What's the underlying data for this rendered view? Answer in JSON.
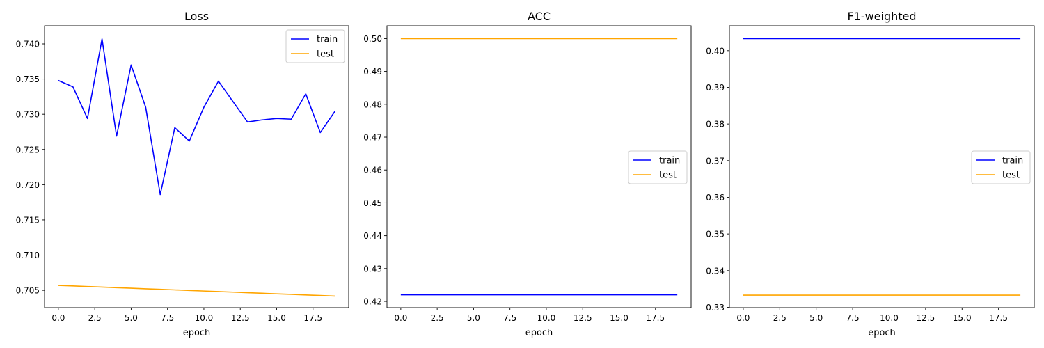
{
  "chart_data": [
    {
      "type": "line",
      "title": "Loss",
      "xlabel": "epoch",
      "ylabel": "",
      "x": [
        0,
        1,
        2,
        3,
        4,
        5,
        6,
        7,
        8,
        9,
        10,
        11,
        12,
        13,
        14,
        15,
        16,
        17,
        18,
        19
      ],
      "xlim": [
        -0.95,
        19.95
      ],
      "ylim": [
        0.70254,
        0.74257
      ],
      "xticks": [
        0.0,
        2.5,
        5.0,
        7.5,
        10.0,
        12.5,
        15.0,
        17.5
      ],
      "xtick_labels": [
        "0.0",
        "2.5",
        "5.0",
        "7.5",
        "10.0",
        "12.5",
        "15.0",
        "17.5"
      ],
      "yticks": [
        0.705,
        0.71,
        0.715,
        0.72,
        0.725,
        0.73,
        0.735,
        0.74
      ],
      "ytick_labels": [
        "0.705",
        "0.710",
        "0.715",
        "0.720",
        "0.725",
        "0.730",
        "0.735",
        "0.740"
      ],
      "grid": false,
      "legend": "upper right",
      "series": [
        {
          "name": "train",
          "color": "#0000ff",
          "values": [
            0.7348,
            0.7339,
            0.7294,
            0.7407,
            0.7269,
            0.737,
            0.731,
            0.7186,
            0.7281,
            0.7262,
            0.731,
            0.7347,
            0.7318,
            0.7289,
            0.7292,
            0.7294,
            0.7293,
            0.7329,
            0.7274,
            0.7304
          ]
        },
        {
          "name": "test",
          "color": "#ffa500",
          "values": [
            0.7057,
            0.70562,
            0.70554,
            0.70546,
            0.70538,
            0.7053,
            0.70522,
            0.70514,
            0.70506,
            0.70498,
            0.7049,
            0.70482,
            0.70474,
            0.70466,
            0.70458,
            0.7045,
            0.70442,
            0.70434,
            0.70426,
            0.70418
          ]
        }
      ]
    },
    {
      "type": "line",
      "title": "ACC",
      "xlabel": "epoch",
      "ylabel": "",
      "x": [
        0,
        1,
        2,
        3,
        4,
        5,
        6,
        7,
        8,
        9,
        10,
        11,
        12,
        13,
        14,
        15,
        16,
        17,
        18,
        19
      ],
      "xlim": [
        -0.95,
        19.95
      ],
      "ylim": [
        0.4181,
        0.5039
      ],
      "xticks": [
        0.0,
        2.5,
        5.0,
        7.5,
        10.0,
        12.5,
        15.0,
        17.5
      ],
      "xtick_labels": [
        "0.0",
        "2.5",
        "5.0",
        "7.5",
        "10.0",
        "12.5",
        "15.0",
        "17.5"
      ],
      "yticks": [
        0.42,
        0.43,
        0.44,
        0.45,
        0.46,
        0.47,
        0.48,
        0.49,
        0.5
      ],
      "ytick_labels": [
        "0.42",
        "0.43",
        "0.44",
        "0.45",
        "0.46",
        "0.47",
        "0.48",
        "0.49",
        "0.50"
      ],
      "grid": false,
      "legend": "center right",
      "series": [
        {
          "name": "train",
          "color": "#0000ff",
          "values": [
            0.422,
            0.422,
            0.422,
            0.422,
            0.422,
            0.422,
            0.422,
            0.422,
            0.422,
            0.422,
            0.422,
            0.422,
            0.422,
            0.422,
            0.422,
            0.422,
            0.422,
            0.422,
            0.422,
            0.422
          ]
        },
        {
          "name": "test",
          "color": "#ffa500",
          "values": [
            0.5,
            0.5,
            0.5,
            0.5,
            0.5,
            0.5,
            0.5,
            0.5,
            0.5,
            0.5,
            0.5,
            0.5,
            0.5,
            0.5,
            0.5,
            0.5,
            0.5,
            0.5,
            0.5,
            0.5
          ]
        }
      ]
    },
    {
      "type": "line",
      "title": "F1-weighted",
      "xlabel": "epoch",
      "ylabel": "",
      "x": [
        0,
        1,
        2,
        3,
        4,
        5,
        6,
        7,
        8,
        9,
        10,
        11,
        12,
        13,
        14,
        15,
        16,
        17,
        18,
        19
      ],
      "xlim": [
        -0.95,
        19.95
      ],
      "ylim": [
        0.3299,
        0.4068
      ],
      "xticks": [
        0.0,
        2.5,
        5.0,
        7.5,
        10.0,
        12.5,
        15.0,
        17.5
      ],
      "xtick_labels": [
        "0.0",
        "2.5",
        "5.0",
        "7.5",
        "10.0",
        "12.5",
        "15.0",
        "17.5"
      ],
      "yticks": [
        0.33,
        0.34,
        0.35,
        0.36,
        0.37,
        0.38,
        0.39,
        0.4
      ],
      "ytick_labels": [
        "0.33",
        "0.34",
        "0.35",
        "0.36",
        "0.37",
        "0.38",
        "0.39",
        "0.40"
      ],
      "grid": false,
      "legend": "center right",
      "series": [
        {
          "name": "train",
          "color": "#0000ff",
          "values": [
            0.4033,
            0.4033,
            0.4033,
            0.4033,
            0.4033,
            0.4033,
            0.4033,
            0.4033,
            0.4033,
            0.4033,
            0.4033,
            0.4033,
            0.4033,
            0.4033,
            0.4033,
            0.4033,
            0.4033,
            0.4033,
            0.4033,
            0.4033
          ]
        },
        {
          "name": "test",
          "color": "#ffa500",
          "values": [
            0.3333,
            0.3333,
            0.3333,
            0.3333,
            0.3333,
            0.3333,
            0.3333,
            0.3333,
            0.3333,
            0.3333,
            0.3333,
            0.3333,
            0.3333,
            0.3333,
            0.3333,
            0.3333,
            0.3333,
            0.3333,
            0.3333,
            0.3333
          ]
        }
      ]
    }
  ]
}
